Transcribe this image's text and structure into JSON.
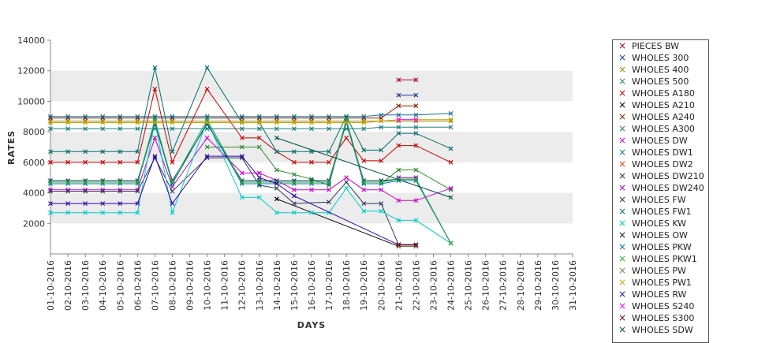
{
  "chart_data": {
    "type": "line",
    "title": "",
    "xlabel": "DAYS",
    "ylabel": "RATES",
    "ylim": [
      0,
      14000
    ],
    "yticks": [
      2000,
      4000,
      6000,
      8000,
      10000,
      12000,
      14000
    ],
    "grid": "alternating horizontal bands",
    "legend_position": "right",
    "categories": [
      "01-10-2016",
      "02-10-2016",
      "03-10-2016",
      "04-10-2016",
      "05-10-2016",
      "06-10-2016",
      "07-10-2016",
      "08-10-2016",
      "09-10-2016",
      "10-10-2016",
      "11-10-2016",
      "12-10-2016",
      "13-10-2016",
      "14-10-2016",
      "15-10-2016",
      "16-10-2016",
      "17-10-2016",
      "18-10-2016",
      "19-10-2016",
      "20-10-2016",
      "21-10-2016",
      "22-10-2016",
      "23-10-2016",
      "24-10-2016",
      "25-10-2016",
      "26-10-2016",
      "27-10-2016",
      "28-10-2016",
      "29-10-2016",
      "30-10-2016",
      "31-10-2016"
    ],
    "series": [
      {
        "name": "PIECES BW",
        "color": "#b0003a",
        "values": [
          null,
          null,
          null,
          null,
          null,
          null,
          null,
          null,
          null,
          null,
          null,
          null,
          null,
          null,
          null,
          null,
          null,
          null,
          null,
          null,
          11400,
          11400,
          null,
          null,
          null,
          null,
          null,
          null,
          null,
          null,
          null
        ]
      },
      {
        "name": "WHOLES 300",
        "color": "#1a3f8f",
        "values": [
          null,
          null,
          null,
          null,
          null,
          null,
          null,
          null,
          null,
          null,
          null,
          null,
          null,
          null,
          null,
          null,
          null,
          null,
          null,
          null,
          10400,
          10400,
          null,
          null,
          null,
          null,
          null,
          null,
          null,
          null,
          null
        ]
      },
      {
        "name": "WHOLES 400",
        "color": "#9a8a00",
        "values": [
          8700,
          8700,
          8700,
          8700,
          8700,
          8700,
          8700,
          8700,
          null,
          8700,
          null,
          8700,
          8700,
          8700,
          8700,
          8700,
          8700,
          8700,
          8700,
          8700,
          8700,
          8700,
          null,
          8700,
          null,
          null,
          null,
          null,
          null,
          null,
          null
        ]
      },
      {
        "name": "WHOLES 500",
        "color": "#1f7f7f",
        "values": [
          8200,
          8200,
          8200,
          8200,
          8200,
          8200,
          8200,
          8200,
          null,
          8200,
          null,
          8200,
          8200,
          8200,
          8200,
          8200,
          8200,
          8200,
          8200,
          8300,
          8300,
          8300,
          null,
          8300,
          null,
          null,
          null,
          null,
          null,
          null,
          null
        ]
      },
      {
        "name": "WHOLES A180",
        "color": "#cc0000",
        "values": [
          6000,
          6000,
          6000,
          6000,
          6000,
          6000,
          10800,
          6000,
          null,
          10800,
          null,
          7600,
          7600,
          6700,
          6000,
          6000,
          6000,
          7600,
          6100,
          6100,
          7100,
          7100,
          null,
          6000,
          null,
          null,
          null,
          null,
          null,
          null,
          null
        ]
      },
      {
        "name": "WHOLES A210",
        "color": "#000000",
        "values": [
          null,
          null,
          null,
          null,
          null,
          null,
          null,
          null,
          null,
          null,
          null,
          null,
          null,
          3600,
          null,
          null,
          null,
          null,
          null,
          null,
          500,
          500,
          null,
          null,
          null,
          null,
          null,
          null,
          null,
          null,
          null
        ]
      },
      {
        "name": "WHOLES A240",
        "color": "#8b2500",
        "values": [
          8900,
          8900,
          8900,
          8900,
          8900,
          8900,
          8900,
          8900,
          null,
          8900,
          null,
          8900,
          8900,
          8900,
          8900,
          8900,
          8900,
          8900,
          8900,
          8900,
          9700,
          9700,
          null,
          null,
          null,
          null,
          null,
          null,
          null,
          null,
          null
        ]
      },
      {
        "name": "WHOLES A300",
        "color": "#2e8b2e",
        "values": [
          null,
          null,
          null,
          null,
          null,
          null,
          null,
          null,
          null,
          7000,
          null,
          7000,
          7000,
          5500,
          5200,
          4900,
          4500,
          8800,
          4600,
          4600,
          5500,
          5500,
          null,
          4200,
          null,
          null,
          null,
          null,
          null,
          null,
          null
        ]
      },
      {
        "name": "WHOLES DW",
        "color": "#cc00cc",
        "values": [
          4200,
          4200,
          4200,
          4200,
          4200,
          4200,
          7600,
          4400,
          null,
          7600,
          null,
          5300,
          5300,
          4800,
          4200,
          4200,
          4200,
          5000,
          4200,
          4200,
          3500,
          3500,
          null,
          4300,
          null,
          null,
          null,
          null,
          null,
          null,
          null
        ]
      },
      {
        "name": "WHOLES DW1",
        "color": "#1a6fa0",
        "values": [
          9000,
          9000,
          9000,
          9000,
          9000,
          9000,
          9000,
          9000,
          null,
          9000,
          null,
          9000,
          9000,
          9000,
          9000,
          9000,
          9000,
          9000,
          9000,
          9100,
          9100,
          9100,
          null,
          9200,
          null,
          null,
          null,
          null,
          null,
          null,
          null
        ]
      },
      {
        "name": "WHOLES DW2",
        "color": "#ff3300",
        "values": [
          null,
          null,
          null,
          null,
          null,
          null,
          null,
          null,
          null,
          null,
          null,
          null,
          null,
          null,
          null,
          null,
          null,
          null,
          null,
          null,
          600,
          600,
          null,
          null,
          null,
          null,
          null,
          null,
          null,
          null,
          null
        ]
      },
      {
        "name": "WHOLES DW210",
        "color": "#003366",
        "values": [
          4800,
          4800,
          4800,
          4800,
          4800,
          4800,
          8500,
          4800,
          null,
          8500,
          null,
          4800,
          4800,
          4800,
          4800,
          4800,
          4800,
          8700,
          4800,
          4800,
          4900,
          4900,
          null,
          700,
          null,
          null,
          null,
          null,
          null,
          null,
          null
        ]
      },
      {
        "name": "WHOLES DW240",
        "color": "#9900cc",
        "values": [
          null,
          null,
          null,
          null,
          null,
          null,
          null,
          null,
          null,
          null,
          null,
          null,
          null,
          null,
          null,
          null,
          null,
          null,
          null,
          null,
          5000,
          5000,
          null,
          null,
          null,
          null,
          null,
          null,
          null,
          null,
          null
        ]
      },
      {
        "name": "WHOLES FW",
        "color": "#2a3a5a",
        "values": [
          4100,
          4100,
          4100,
          4100,
          4100,
          4100,
          6300,
          4100,
          null,
          6300,
          null,
          6300,
          4500,
          4300,
          3300,
          null,
          3400,
          4700,
          3300,
          3300,
          600,
          600,
          null,
          null,
          null,
          null,
          null,
          null,
          null,
          null,
          null
        ]
      },
      {
        "name": "WHOLES FW1",
        "color": "#006d6d",
        "values": [
          6700,
          6700,
          6700,
          6700,
          6700,
          6700,
          12200,
          6700,
          null,
          12200,
          null,
          8600,
          8600,
          6700,
          6700,
          6700,
          6700,
          9000,
          6800,
          6800,
          7900,
          7900,
          null,
          6900,
          null,
          null,
          null,
          null,
          null,
          null,
          null
        ]
      },
      {
        "name": "WHOLES KW",
        "color": "#00cccc",
        "values": [
          2700,
          2700,
          2700,
          2700,
          2700,
          2700,
          8700,
          2700,
          null,
          8700,
          null,
          3700,
          3700,
          2700,
          2700,
          2700,
          2700,
          4300,
          2800,
          2800,
          2200,
          2200,
          null,
          700,
          null,
          null,
          null,
          null,
          null,
          null,
          null
        ]
      },
      {
        "name": "WHOLES OW",
        "color": "#1a1a00",
        "values": [
          null,
          null,
          null,
          null,
          null,
          null,
          null,
          null,
          null,
          null,
          null,
          null,
          null,
          null,
          null,
          null,
          null,
          null,
          null,
          null,
          500,
          500,
          null,
          null,
          null,
          null,
          null,
          null,
          null,
          null,
          null
        ]
      },
      {
        "name": "WHOLES PKW",
        "color": "#0077aa",
        "values": [
          4600,
          4600,
          4600,
          4600,
          4600,
          4600,
          8600,
          4600,
          null,
          8600,
          null,
          4600,
          4600,
          4600,
          4600,
          4600,
          4600,
          8600,
          4600,
          4600,
          4800,
          4800,
          null,
          700,
          null,
          null,
          null,
          null,
          null,
          null,
          null
        ]
      },
      {
        "name": "WHOLES PKW1",
        "color": "#33aa33",
        "values": [
          4700,
          4700,
          4700,
          4700,
          4700,
          4700,
          8800,
          4700,
          null,
          8800,
          null,
          4700,
          4700,
          4700,
          4700,
          4700,
          4700,
          8800,
          4700,
          4700,
          4900,
          4900,
          null,
          700,
          null,
          null,
          null,
          null,
          null,
          null,
          null
        ]
      },
      {
        "name": "WHOLES PW",
        "color": "#8a7a4a",
        "values": [
          null,
          null,
          null,
          null,
          null,
          null,
          null,
          null,
          null,
          null,
          null,
          null,
          null,
          null,
          null,
          null,
          null,
          null,
          null,
          null,
          500,
          500,
          null,
          null,
          null,
          null,
          null,
          null,
          null,
          null,
          null
        ]
      },
      {
        "name": "WHOLES PW1",
        "color": "#c8a000",
        "values": [
          8600,
          8600,
          8600,
          8600,
          8600,
          8600,
          8600,
          8600,
          null,
          8600,
          null,
          8600,
          8600,
          8600,
          8600,
          8600,
          8600,
          8600,
          8600,
          8700,
          8800,
          8800,
          null,
          8800,
          null,
          null,
          null,
          null,
          null,
          null,
          null
        ]
      },
      {
        "name": "WHOLES RW",
        "color": "#3300aa",
        "values": [
          3300,
          3300,
          3300,
          3300,
          3300,
          3300,
          6400,
          3300,
          null,
          6400,
          null,
          6400,
          5000,
          4600,
          3800,
          null,
          null,
          null,
          null,
          null,
          600,
          600,
          null,
          null,
          null,
          null,
          null,
          null,
          null,
          null,
          null
        ]
      },
      {
        "name": "WHOLES S240",
        "color": "#ff00ff",
        "values": [
          null,
          null,
          null,
          null,
          null,
          null,
          null,
          null,
          null,
          null,
          null,
          null,
          null,
          null,
          null,
          null,
          null,
          null,
          null,
          null,
          8800,
          8800,
          null,
          null,
          null,
          null,
          null,
          null,
          null,
          null,
          null
        ]
      },
      {
        "name": "WHOLES S300",
        "color": "#660022",
        "values": [
          null,
          null,
          null,
          null,
          null,
          null,
          null,
          null,
          null,
          null,
          null,
          null,
          null,
          null,
          null,
          null,
          null,
          null,
          null,
          null,
          600,
          600,
          null,
          null,
          null,
          null,
          null,
          null,
          null,
          null,
          null
        ]
      },
      {
        "name": "WHOLES SDW",
        "color": "#004d4d",
        "values": [
          null,
          null,
          null,
          null,
          null,
          null,
          null,
          null,
          null,
          null,
          null,
          null,
          null,
          7600,
          null,
          null,
          null,
          null,
          null,
          null,
          null,
          null,
          null,
          3700,
          null,
          null,
          null,
          null,
          null,
          null,
          null
        ]
      }
    ]
  }
}
